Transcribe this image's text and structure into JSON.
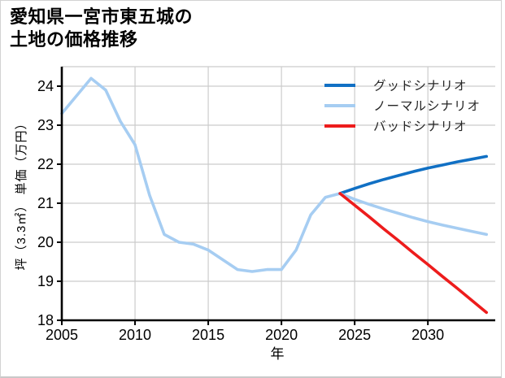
{
  "title": {
    "line1": "愛知県一宮市東五城の",
    "line2": "土地の価格推移"
  },
  "chart_data": {
    "type": "line",
    "title": "愛知県一宮市東五城の土地の価格推移",
    "xlabel": "年",
    "ylabel": "坪（3.3㎡） 単価（万円）",
    "xlim": [
      2005,
      2034.6
    ],
    "ylim": [
      18,
      24.5
    ],
    "xticks": [
      2005,
      2010,
      2015,
      2020,
      2025,
      2030
    ],
    "yticks": [
      18,
      19,
      20,
      21,
      22,
      23,
      24
    ],
    "grid": true,
    "grid_color": "#cccccc",
    "axis_color": "#000000",
    "legend_position": "upper right",
    "series": [
      {
        "name": "price-history",
        "label": "",
        "in_legend": false,
        "color": "#a6cdf2",
        "x": [
          2005,
          2006,
          2007,
          2008,
          2009,
          2010,
          2011,
          2012,
          2013,
          2014,
          2015,
          2016,
          2017,
          2018,
          2019,
          2020,
          2021,
          2022,
          2023,
          2024
        ],
        "values": [
          23.3,
          23.75,
          24.2,
          23.9,
          23.1,
          22.5,
          21.2,
          20.2,
          20.0,
          19.95,
          19.8,
          19.55,
          19.3,
          19.25,
          19.3,
          19.3,
          19.8,
          20.7,
          21.15,
          21.25
        ]
      },
      {
        "name": "good-scenario",
        "label": "グッドシナリオ",
        "in_legend": true,
        "color": "#1170c4",
        "x": [
          2024,
          2025,
          2026,
          2027,
          2028,
          2029,
          2030,
          2031,
          2032,
          2033,
          2034
        ],
        "values": [
          21.25,
          21.38,
          21.5,
          21.61,
          21.71,
          21.81,
          21.9,
          21.98,
          22.06,
          22.13,
          22.2
        ]
      },
      {
        "name": "normal-scenario",
        "label": "ノーマルシナリオ",
        "in_legend": true,
        "color": "#a6cdf2",
        "x": [
          2024,
          2025,
          2026,
          2027,
          2028,
          2029,
          2030,
          2031,
          2032,
          2033,
          2034
        ],
        "values": [
          21.25,
          21.1,
          20.97,
          20.85,
          20.74,
          20.63,
          20.53,
          20.44,
          20.36,
          20.28,
          20.2
        ]
      },
      {
        "name": "bad-scenario",
        "label": "バッドシナリオ",
        "in_legend": true,
        "color": "#ed1c1c",
        "x": [
          2024,
          2025,
          2026,
          2027,
          2028,
          2029,
          2030,
          2031,
          2032,
          2033,
          2034
        ],
        "values": [
          21.25,
          20.95,
          20.65,
          20.34,
          20.04,
          19.73,
          19.43,
          19.12,
          18.82,
          18.51,
          18.2
        ]
      }
    ]
  }
}
